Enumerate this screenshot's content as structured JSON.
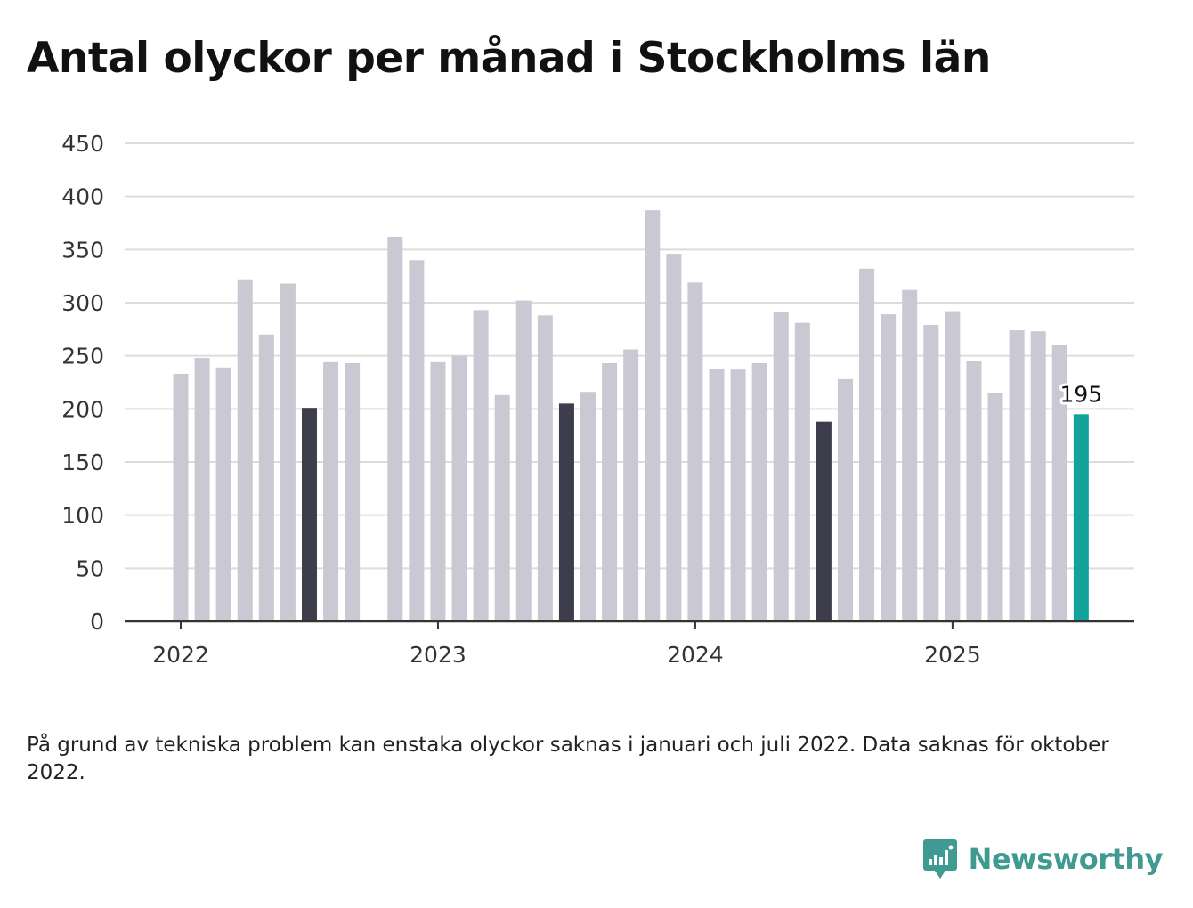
{
  "title": "Antal olyckor per månad i Stockholms län",
  "note": "På grund av tekniska problem kan enstaka olyckor saknas i januari och juli 2022. Data saknas för oktober 2022.",
  "brand": {
    "name": "Newsworthy",
    "icon": "bar-chart-badge-icon"
  },
  "colors": {
    "default": "#c9c8d3",
    "highlight": "#3e3d4b",
    "latest": "#12a39a",
    "grid": "#dcdcdc",
    "axis": "#333333"
  },
  "chart_data": {
    "type": "bar",
    "title": "Antal olyckor per månad i Stockholms län",
    "xlabel": "",
    "ylabel": "",
    "ylim": [
      0,
      450
    ],
    "yticks": [
      0,
      50,
      100,
      150,
      200,
      250,
      300,
      350,
      400,
      450
    ],
    "xticks": [
      "2022",
      "2023",
      "2024",
      "2025"
    ],
    "grid": true,
    "categories": [
      "2022-01",
      "2022-02",
      "2022-03",
      "2022-04",
      "2022-05",
      "2022-06",
      "2022-07",
      "2022-08",
      "2022-09",
      "2022-10",
      "2022-11",
      "2022-12",
      "2023-01",
      "2023-02",
      "2023-03",
      "2023-04",
      "2023-05",
      "2023-06",
      "2023-07",
      "2023-08",
      "2023-09",
      "2023-10",
      "2023-11",
      "2023-12",
      "2024-01",
      "2024-02",
      "2024-03",
      "2024-04",
      "2024-05",
      "2024-06",
      "2024-07",
      "2024-08",
      "2024-09",
      "2024-10",
      "2024-11",
      "2024-12",
      "2025-01",
      "2025-02",
      "2025-03",
      "2025-04",
      "2025-05",
      "2025-06",
      "2025-07"
    ],
    "values": [
      233,
      248,
      239,
      322,
      270,
      318,
      201,
      244,
      243,
      null,
      362,
      340,
      244,
      250,
      293,
      213,
      302,
      288,
      205,
      216,
      243,
      256,
      387,
      346,
      319,
      238,
      237,
      243,
      291,
      281,
      188,
      228,
      332,
      289,
      312,
      279,
      292,
      245,
      215,
      274,
      273,
      260,
      195
    ],
    "highlighted": [
      "2022-07",
      "2023-07",
      "2024-07"
    ],
    "latest": "2025-07",
    "latest_label": "195"
  }
}
